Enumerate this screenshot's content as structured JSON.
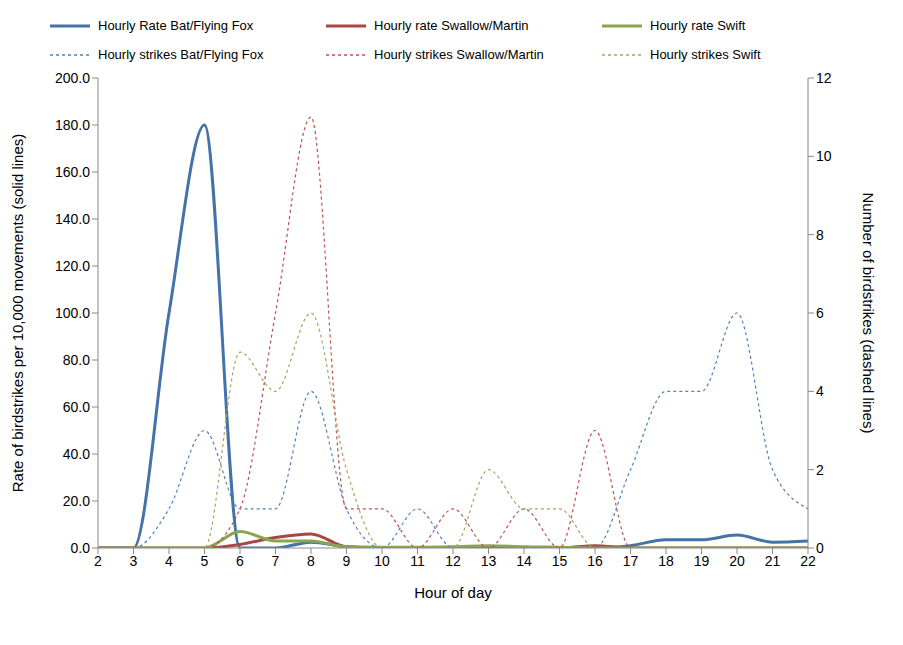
{
  "chart_data": {
    "type": "line",
    "x_label": "Hour of day",
    "y_label": "Rate of birdstrikes per 10,000 movements (solid lines)",
    "y2_label": "Number of birdstrikes (dashed lines)",
    "categories": [
      "2",
      "3",
      "4",
      "5",
      "6",
      "7",
      "8",
      "9",
      "10",
      "11",
      "12",
      "13",
      "14",
      "15",
      "16",
      "17",
      "18",
      "19",
      "20",
      "21",
      "22"
    ],
    "ylim": [
      0,
      200
    ],
    "yticks": [
      {
        "value": 0,
        "label": "0.0"
      },
      {
        "value": 20,
        "label": "20.0"
      },
      {
        "value": 40,
        "label": "40.0"
      },
      {
        "value": 60,
        "label": "60.0"
      },
      {
        "value": 80,
        "label": "80.0"
      },
      {
        "value": 100,
        "label": "100.0"
      },
      {
        "value": 120,
        "label": "120.0"
      },
      {
        "value": 140,
        "label": "140.0"
      },
      {
        "value": 160,
        "label": "160.0"
      },
      {
        "value": 180,
        "label": "180.0"
      },
      {
        "value": 200,
        "label": "200.0"
      }
    ],
    "y2lim": [
      0,
      12
    ],
    "y2ticks": [
      0,
      2,
      4,
      6,
      8,
      10,
      12
    ],
    "grid": false,
    "legend": "top",
    "series": [
      {
        "name": "Hourly Rate Bat/Flying Fox",
        "color": "#4572a7",
        "line_style": "solid",
        "values": [
          0,
          0,
          100,
          180,
          0,
          0,
          2.5,
          0.5,
          0,
          0,
          0,
          0,
          0,
          0,
          0,
          1,
          3.5,
          3.5,
          5.5,
          2.5,
          3
        ]
      },
      {
        "name": "Hourly rate Swallow/Martin",
        "color": "#aa4643",
        "line_style": "solid",
        "values": [
          0,
          0,
          0,
          0,
          1.5,
          4.5,
          6,
          0.5,
          0,
          0,
          0,
          0,
          0,
          0,
          1,
          0,
          0,
          0,
          0,
          0,
          0
        ]
      },
      {
        "name": "Hourly rate Swift",
        "color": "#89a54e",
        "line_style": "solid",
        "values": [
          0,
          0,
          0,
          0,
          7,
          3,
          3,
          0.5,
          0.3,
          0.3,
          0.5,
          1,
          0.5,
          0.3,
          0,
          0,
          0,
          0,
          0,
          0,
          0
        ]
      },
      {
        "name": "Hourly strikes Bat/Flying Fox",
        "color": "#4f81bd",
        "line_style": "dashed",
        "axis": "y2",
        "values": [
          0,
          0,
          1,
          3,
          1,
          1,
          4,
          1,
          0,
          1,
          0,
          0,
          0,
          0,
          0,
          2,
          4,
          4,
          6,
          2,
          1
        ]
      },
      {
        "name": "Hourly strikes Swallow/Martin",
        "color": "#c0504d",
        "line_style": "dashed",
        "axis": "y2",
        "values": [
          0,
          0,
          0,
          0,
          1,
          6,
          11,
          1,
          1,
          0,
          1,
          0,
          1,
          0,
          3,
          0,
          0,
          0,
          0,
          0,
          0
        ]
      },
      {
        "name": "Hourly strikes Swift",
        "color": "#a5a55a",
        "line_style": "dashed",
        "axis": "y2",
        "values": [
          0,
          0,
          0,
          0,
          5,
          4,
          6,
          2,
          0,
          0,
          0,
          2,
          1,
          1,
          0,
          0,
          0,
          0,
          0,
          0,
          0
        ]
      }
    ]
  }
}
